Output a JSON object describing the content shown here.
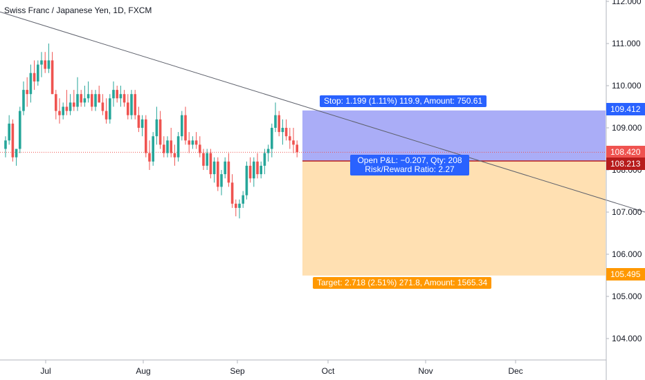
{
  "header": {
    "symbol": "Swiss Franc / Japanese Yen, 1D, FXCM"
  },
  "colors": {
    "up": "#26a69a",
    "down": "#ef5350",
    "stop_zone": "#a5a9f7",
    "target_zone": "#ffe0b2",
    "accent_blue": "#2962ff",
    "accent_orange": "#ff9800",
    "current_price": "#ef5350",
    "entry_price": "#b71c1c"
  },
  "price_labels": {
    "stop": "109.412",
    "current": "108.420",
    "entry": "108.213",
    "target": "105.495"
  },
  "position": {
    "stop_text": "Stop: 1.199 (1.11%) 119.9, Amount: 750.61",
    "pnl_text": "Open P&L: −0.207, Qty: 208",
    "ratio_text": "Risk/Reward Ratio: 2.27",
    "target_text": "Target: 2.718 (2.51%) 271.8, Amount: 1565.34"
  },
  "chart_data": {
    "type": "candlestick",
    "title": "Swiss Franc / Japanese Yen, 1D, FXCM",
    "y_ticks": [
      "112.000",
      "111.000",
      "110.000",
      "109.000",
      "108.000",
      "107.000",
      "106.000",
      "105.000",
      "104.000"
    ],
    "x_ticks": [
      "Jul",
      "Aug",
      "Sep",
      "Oct",
      "Nov",
      "Dec"
    ],
    "ylim": [
      103.4,
      112.0
    ],
    "grid": false,
    "candles": [
      [
        108.5,
        108.8,
        108.3,
        108.7
      ],
      [
        108.7,
        109.3,
        108.6,
        109.1
      ],
      [
        109.1,
        109.2,
        108.2,
        108.3
      ],
      [
        108.3,
        108.5,
        108.1,
        108.5
      ],
      [
        108.5,
        109.5,
        108.4,
        109.4
      ],
      [
        109.4,
        110.1,
        109.3,
        109.9
      ],
      [
        109.9,
        110.2,
        109.5,
        109.8
      ],
      [
        109.8,
        110.5,
        109.6,
        110.3
      ],
      [
        110.3,
        110.6,
        109.9,
        110.1
      ],
      [
        110.1,
        110.6,
        110.0,
        110.5
      ],
      [
        110.5,
        110.8,
        110.2,
        110.6
      ],
      [
        110.6,
        110.8,
        110.3,
        110.4
      ],
      [
        110.4,
        111.0,
        110.3,
        110.6
      ],
      [
        110.6,
        110.8,
        109.8,
        109.8
      ],
      [
        109.8,
        109.9,
        109.2,
        109.4
      ],
      [
        109.4,
        109.7,
        109.1,
        109.3
      ],
      [
        109.3,
        109.6,
        109.2,
        109.5
      ],
      [
        109.5,
        109.9,
        109.3,
        109.4
      ],
      [
        109.4,
        109.8,
        109.3,
        109.6
      ],
      [
        109.6,
        109.9,
        109.4,
        109.5
      ],
      [
        109.5,
        110.2,
        109.4,
        109.8
      ],
      [
        109.8,
        109.9,
        109.5,
        109.6
      ],
      [
        109.6,
        110.0,
        109.5,
        109.7
      ],
      [
        109.7,
        110.1,
        109.6,
        109.8
      ],
      [
        109.8,
        109.9,
        109.4,
        109.5
      ],
      [
        109.5,
        109.9,
        109.4,
        109.8
      ],
      [
        109.8,
        110.0,
        109.6,
        109.6
      ],
      [
        109.6,
        109.8,
        109.3,
        109.4
      ],
      [
        109.4,
        109.7,
        109.1,
        109.2
      ],
      [
        109.2,
        109.8,
        109.1,
        109.7
      ],
      [
        109.7,
        110.1,
        109.5,
        109.9
      ],
      [
        109.9,
        110.0,
        109.6,
        109.7
      ],
      [
        109.7,
        110.0,
        109.5,
        109.8
      ],
      [
        109.8,
        109.9,
        109.5,
        109.6
      ],
      [
        109.6,
        109.8,
        109.2,
        109.3
      ],
      [
        109.3,
        109.9,
        109.2,
        109.8
      ],
      [
        109.8,
        109.9,
        109.2,
        109.3
      ],
      [
        109.3,
        109.5,
        108.9,
        109.0
      ],
      [
        109.0,
        109.3,
        108.8,
        109.2
      ],
      [
        109.2,
        109.3,
        108.3,
        108.4
      ],
      [
        108.4,
        108.7,
        108.0,
        108.2
      ],
      [
        108.2,
        108.9,
        108.1,
        108.8
      ],
      [
        108.8,
        109.5,
        108.6,
        109.2
      ],
      [
        109.2,
        109.4,
        108.5,
        108.6
      ],
      [
        108.6,
        108.8,
        108.3,
        108.4
      ],
      [
        108.4,
        108.8,
        108.3,
        108.7
      ],
      [
        108.7,
        109.0,
        108.3,
        108.4
      ],
      [
        108.4,
        108.6,
        108.1,
        108.3
      ],
      [
        108.3,
        108.9,
        108.2,
        108.8
      ],
      [
        108.8,
        109.4,
        108.7,
        109.3
      ],
      [
        109.3,
        109.5,
        108.6,
        108.7
      ],
      [
        108.7,
        108.9,
        108.4,
        108.6
      ],
      [
        108.6,
        108.8,
        108.5,
        108.7
      ],
      [
        108.7,
        108.9,
        108.5,
        108.6
      ],
      [
        108.6,
        108.8,
        108.3,
        108.4
      ],
      [
        108.4,
        108.5,
        108.0,
        108.1
      ],
      [
        108.1,
        108.5,
        108.0,
        108.4
      ],
      [
        108.4,
        108.5,
        107.8,
        107.9
      ],
      [
        107.9,
        108.3,
        107.7,
        108.2
      ],
      [
        108.2,
        108.3,
        107.5,
        107.6
      ],
      [
        107.6,
        108.0,
        107.4,
        107.9
      ],
      [
        107.9,
        108.3,
        107.8,
        108.2
      ],
      [
        108.2,
        108.4,
        107.6,
        107.7
      ],
      [
        107.7,
        107.9,
        107.1,
        107.2
      ],
      [
        107.2,
        107.3,
        106.9,
        107.1
      ],
      [
        107.1,
        107.3,
        106.85,
        107.2
      ],
      [
        107.2,
        107.5,
        107.1,
        107.4
      ],
      [
        107.4,
        108.2,
        107.3,
        108.1
      ],
      [
        108.1,
        108.3,
        107.7,
        107.8
      ],
      [
        107.8,
        108.3,
        107.6,
        108.2
      ],
      [
        108.2,
        108.4,
        107.8,
        107.9
      ],
      [
        107.9,
        108.2,
        107.8,
        108.1
      ],
      [
        108.1,
        108.5,
        107.9,
        108.4
      ],
      [
        108.4,
        108.6,
        108.2,
        108.5
      ],
      [
        108.5,
        109.1,
        108.3,
        109.0
      ],
      [
        109.0,
        109.6,
        108.9,
        109.3
      ],
      [
        109.3,
        109.4,
        108.8,
        108.9
      ],
      [
        108.9,
        109.2,
        108.6,
        109.0
      ],
      [
        109.0,
        109.2,
        108.7,
        108.8
      ],
      [
        108.8,
        109.0,
        108.5,
        108.7
      ],
      [
        108.7,
        109.0,
        108.4,
        108.6
      ],
      [
        108.6,
        108.7,
        108.3,
        108.42
      ]
    ],
    "trendline": {
      "from": [
        "2020-06-10",
        111.75
      ],
      "to": [
        "2020-12-31",
        107.0
      ]
    },
    "position_tool": {
      "stop": 109.412,
      "entry": 108.213,
      "target": 105.495,
      "current": 108.42
    }
  }
}
